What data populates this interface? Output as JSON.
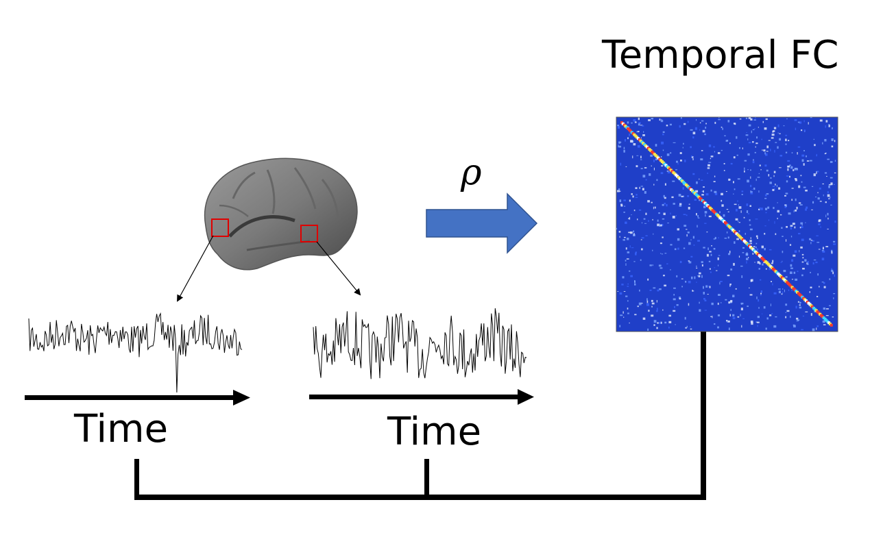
{
  "title": "Temporal FC",
  "correlation_symbol": "ρ",
  "time_axes": [
    {
      "label": "Time"
    },
    {
      "label": "Time"
    }
  ],
  "colors": {
    "block_arrow": "#4472C4",
    "roi_box": "#E00000",
    "matrix_background": "#1f3fc8",
    "lines": "#000000"
  }
}
